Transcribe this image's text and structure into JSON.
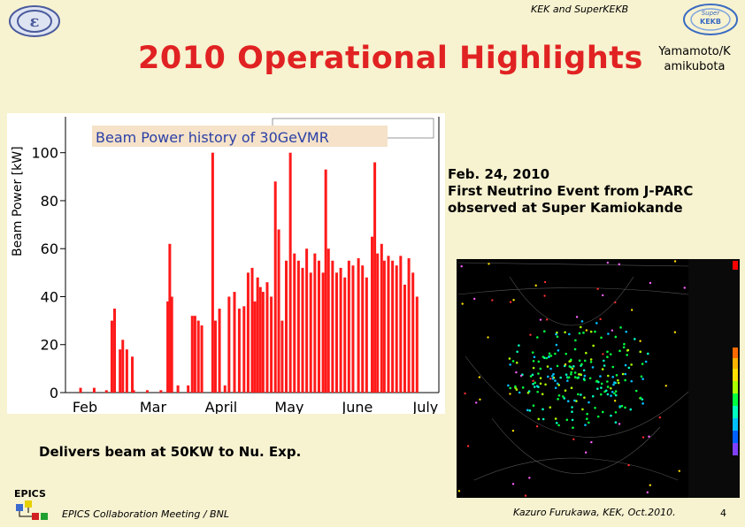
{
  "header": {
    "org_text": "KEK and SuperKEKB"
  },
  "title": "2010 Operational Highlights",
  "authors": [
    "Yamamoto/K",
    "amikubota"
  ],
  "chart_data": {
    "type": "bar",
    "title": "Beam Power history of 30GeVMR",
    "ylabel": "Beam Power  [kW]",
    "xlabel": "",
    "ylim": [
      0,
      115
    ],
    "y_ticks": [
      0,
      20,
      40,
      60,
      80,
      100
    ],
    "x_tick_labels": [
      "Feb",
      "Mar",
      "April",
      "May",
      "June",
      "July"
    ],
    "grid": false,
    "bar_color": "#ff1a1a",
    "approx_series": [
      {
        "month_frac": 0.02,
        "value": 2
      },
      {
        "month_frac": 0.22,
        "value": 2
      },
      {
        "month_frac": 0.4,
        "value": 1
      },
      {
        "month_frac": 0.48,
        "value": 30
      },
      {
        "month_frac": 0.52,
        "value": 35
      },
      {
        "month_frac": 0.6,
        "value": 18
      },
      {
        "month_frac": 0.64,
        "value": 22
      },
      {
        "month_frac": 0.7,
        "value": 18
      },
      {
        "month_frac": 0.78,
        "value": 15
      },
      {
        "month_frac": 0.8,
        "value": 1
      },
      {
        "month_frac": 1.0,
        "value": 1
      },
      {
        "month_frac": 1.2,
        "value": 1
      },
      {
        "month_frac": 1.3,
        "value": 38
      },
      {
        "month_frac": 1.33,
        "value": 62
      },
      {
        "month_frac": 1.36,
        "value": 40
      },
      {
        "month_frac": 1.45,
        "value": 3
      },
      {
        "month_frac": 1.6,
        "value": 3
      },
      {
        "month_frac": 1.66,
        "value": 32
      },
      {
        "month_frac": 1.7,
        "value": 32
      },
      {
        "month_frac": 1.75,
        "value": 30
      },
      {
        "month_frac": 1.8,
        "value": 28
      },
      {
        "month_frac": 1.96,
        "value": 100
      },
      {
        "month_frac": 2.0,
        "value": 30
      },
      {
        "month_frac": 2.06,
        "value": 35
      },
      {
        "month_frac": 2.14,
        "value": 3
      },
      {
        "month_frac": 2.2,
        "value": 40
      },
      {
        "month_frac": 2.28,
        "value": 42
      },
      {
        "month_frac": 2.35,
        "value": 35
      },
      {
        "month_frac": 2.42,
        "value": 36
      },
      {
        "month_frac": 2.48,
        "value": 50
      },
      {
        "month_frac": 2.54,
        "value": 52
      },
      {
        "month_frac": 2.58,
        "value": 38
      },
      {
        "month_frac": 2.62,
        "value": 48
      },
      {
        "month_frac": 2.66,
        "value": 44
      },
      {
        "month_frac": 2.7,
        "value": 42
      },
      {
        "month_frac": 2.76,
        "value": 46
      },
      {
        "month_frac": 2.82,
        "value": 40
      },
      {
        "month_frac": 2.88,
        "value": 88
      },
      {
        "month_frac": 2.93,
        "value": 68
      },
      {
        "month_frac": 2.98,
        "value": 30
      },
      {
        "month_frac": 3.04,
        "value": 55
      },
      {
        "month_frac": 3.1,
        "value": 100
      },
      {
        "month_frac": 3.16,
        "value": 58
      },
      {
        "month_frac": 3.22,
        "value": 55
      },
      {
        "month_frac": 3.28,
        "value": 52
      },
      {
        "month_frac": 3.34,
        "value": 60
      },
      {
        "month_frac": 3.4,
        "value": 50
      },
      {
        "month_frac": 3.46,
        "value": 58
      },
      {
        "month_frac": 3.52,
        "value": 55
      },
      {
        "month_frac": 3.58,
        "value": 50
      },
      {
        "month_frac": 3.62,
        "value": 93
      },
      {
        "month_frac": 3.66,
        "value": 60
      },
      {
        "month_frac": 3.72,
        "value": 55
      },
      {
        "month_frac": 3.78,
        "value": 50
      },
      {
        "month_frac": 3.84,
        "value": 52
      },
      {
        "month_frac": 3.9,
        "value": 48
      },
      {
        "month_frac": 3.96,
        "value": 55
      },
      {
        "month_frac": 4.02,
        "value": 53
      },
      {
        "month_frac": 4.1,
        "value": 56
      },
      {
        "month_frac": 4.16,
        "value": 53
      },
      {
        "month_frac": 4.22,
        "value": 48
      },
      {
        "month_frac": 4.3,
        "value": 65
      },
      {
        "month_frac": 4.34,
        "value": 96
      },
      {
        "month_frac": 4.38,
        "value": 58
      },
      {
        "month_frac": 4.44,
        "value": 62
      },
      {
        "month_frac": 4.48,
        "value": 55
      },
      {
        "month_frac": 4.54,
        "value": 57
      },
      {
        "month_frac": 4.6,
        "value": 55
      },
      {
        "month_frac": 4.66,
        "value": 53
      },
      {
        "month_frac": 4.72,
        "value": 57
      },
      {
        "month_frac": 4.78,
        "value": 45
      },
      {
        "month_frac": 4.84,
        "value": 56
      },
      {
        "month_frac": 4.9,
        "value": 50
      },
      {
        "month_frac": 4.96,
        "value": 40
      }
    ]
  },
  "event_text": [
    "Feb. 24, 2010",
    "First Neutrino Event from J-PARC",
    "observed at Super Kamiokande"
  ],
  "delivers_text": "Delivers beam at 50KW to Nu. Exp.",
  "epics_label": "EPICS",
  "footer": {
    "left": "EPICS Collaboration Meeting / BNL",
    "right": "Kazuro Furukawa, KEK, Oct.2010.",
    "page": "4"
  },
  "logo_superkekb_text": [
    "Super",
    "KEKB"
  ],
  "colors": {
    "title": "#e12222",
    "bar": "#ff1a1a",
    "background": "#f7f2d0"
  }
}
